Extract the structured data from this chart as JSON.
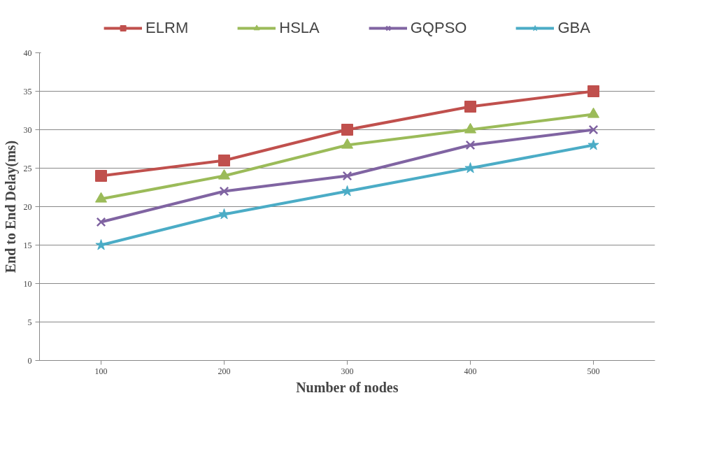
{
  "chart_data": {
    "type": "line",
    "xlabel": "Number of nodes",
    "ylabel": "End to End Delay(ms)",
    "categories": [
      "100",
      "200",
      "300",
      "400",
      "500"
    ],
    "ylim": [
      0,
      40
    ],
    "yticks": [
      0,
      5,
      10,
      15,
      20,
      25,
      30,
      35,
      40
    ],
    "grid": "y",
    "legend": "top",
    "series": [
      {
        "name": "ELRM",
        "color": "#c0504d",
        "marker": "square",
        "values": [
          24,
          26,
          30,
          33,
          35
        ]
      },
      {
        "name": "HSLA",
        "color": "#9bbb59",
        "marker": "triangle",
        "values": [
          21,
          24,
          28,
          30,
          32
        ]
      },
      {
        "name": "GQPSO",
        "color": "#8064a2",
        "marker": "cross",
        "values": [
          18,
          22,
          24,
          28,
          30
        ]
      },
      {
        "name": "GBA",
        "color": "#4bacc6",
        "marker": "star",
        "values": [
          15,
          19,
          22,
          25,
          28
        ]
      }
    ]
  }
}
